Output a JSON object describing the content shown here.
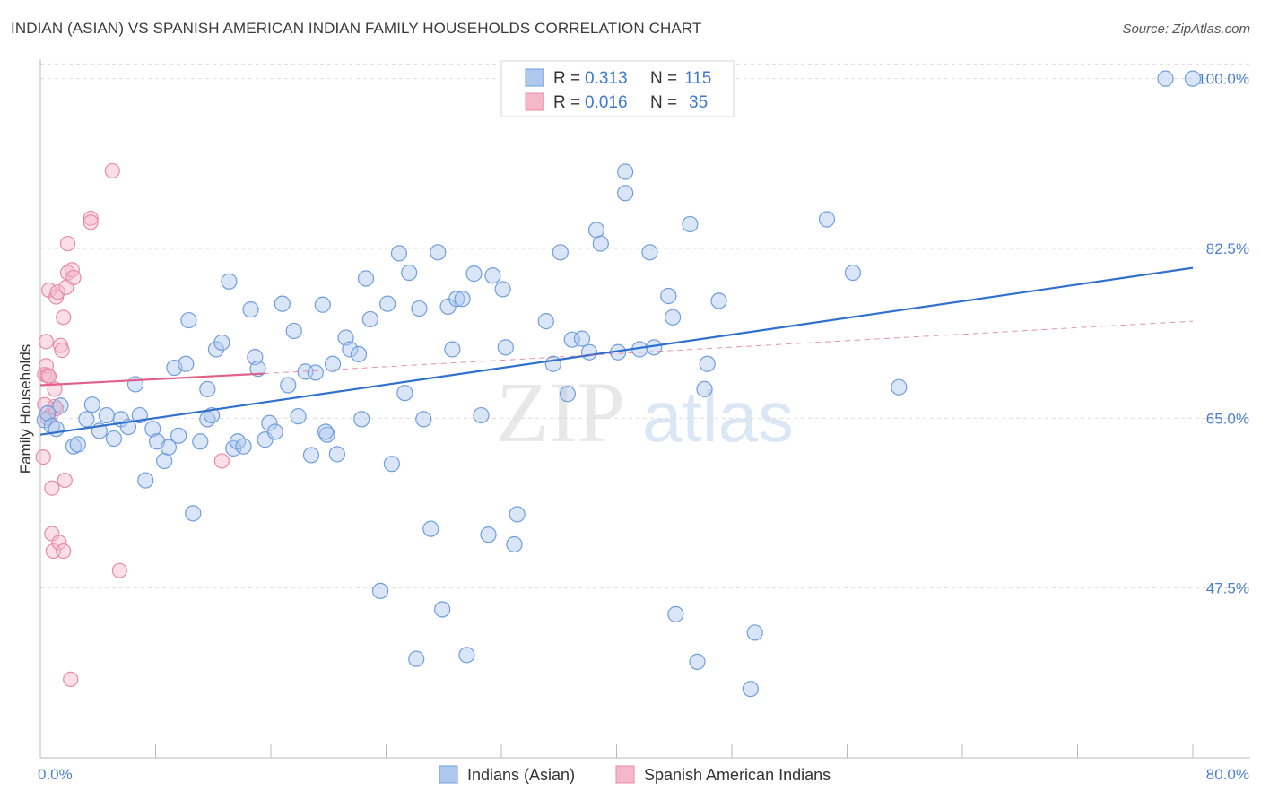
{
  "title": "INDIAN (ASIAN) VS SPANISH AMERICAN INDIAN FAMILY HOUSEHOLDS CORRELATION CHART",
  "source": "Source: ZipAtlas.com",
  "watermark": {
    "zip": "ZIP",
    "atlas": "atlas"
  },
  "colors": {
    "blue_fill": "#aec8ee",
    "blue_stroke": "#6f9ee0",
    "blue_line": "#2f6fce",
    "pink_fill": "#f5b8cb",
    "pink_stroke": "#e88aa8",
    "pink_line": "#e0608a",
    "grid": "#dddddd",
    "tick_text": "#4a7fd4"
  },
  "legend": {
    "r_label": "R =",
    "n_label": "N =",
    "series": [
      {
        "r": "0.313",
        "n": "115"
      },
      {
        "r": "0.016",
        "n": "35"
      }
    ]
  },
  "chart_data": {
    "type": "scatter",
    "title": "INDIAN (ASIAN) VS SPANISH AMERICAN INDIAN FAMILY HOUSEHOLDS CORRELATION CHART",
    "xlabel": "",
    "ylabel": "Family Households",
    "xlim": [
      0,
      80
    ],
    "ylim": [
      30,
      102
    ],
    "x_tick_labels": [
      "0.0%",
      "80.0%"
    ],
    "y_ticks": [
      47.5,
      65.0,
      82.5,
      100.0
    ],
    "y_tick_labels": [
      "47.5%",
      "65.0%",
      "82.5%",
      "100.0%"
    ],
    "grid": true,
    "series": [
      {
        "name": "Indians (Asian)",
        "r": 0.313,
        "n": 115,
        "trend": {
          "x0": 0,
          "y0": 63.3,
          "x1": 80,
          "y1": 80.5
        },
        "points": [
          [
            0.3,
            64.8
          ],
          [
            0.5,
            65.5
          ],
          [
            0.8,
            64.2
          ],
          [
            1.1,
            63.9
          ],
          [
            1.4,
            66.3
          ],
          [
            2.3,
            62.1
          ],
          [
            2.6,
            62.3
          ],
          [
            3.2,
            64.9
          ],
          [
            3.6,
            66.4
          ],
          [
            4.1,
            63.7
          ],
          [
            4.6,
            65.3
          ],
          [
            5.1,
            62.9
          ],
          [
            5.6,
            64.9
          ],
          [
            6.1,
            64.1
          ],
          [
            6.6,
            68.5
          ],
          [
            6.9,
            65.3
          ],
          [
            7.3,
            58.6
          ],
          [
            7.8,
            63.9
          ],
          [
            8.1,
            62.6
          ],
          [
            8.6,
            60.6
          ],
          [
            8.9,
            62.0
          ],
          [
            9.3,
            70.2
          ],
          [
            9.6,
            63.2
          ],
          [
            10.1,
            70.6
          ],
          [
            10.3,
            75.1
          ],
          [
            10.6,
            55.2
          ],
          [
            11.1,
            62.6
          ],
          [
            11.6,
            64.9
          ],
          [
            11.9,
            65.3
          ],
          [
            12.2,
            72.1
          ],
          [
            12.6,
            72.8
          ],
          [
            13.1,
            79.1
          ],
          [
            13.4,
            61.9
          ],
          [
            13.7,
            62.6
          ],
          [
            14.1,
            62.1
          ],
          [
            14.6,
            76.2
          ],
          [
            14.9,
            71.3
          ],
          [
            15.1,
            70.1
          ],
          [
            15.6,
            62.8
          ],
          [
            15.9,
            64.5
          ],
          [
            16.3,
            63.6
          ],
          [
            16.8,
            76.8
          ],
          [
            17.2,
            68.4
          ],
          [
            17.6,
            74.0
          ],
          [
            17.9,
            65.2
          ],
          [
            18.4,
            69.8
          ],
          [
            18.8,
            61.2
          ],
          [
            19.1,
            69.7
          ],
          [
            19.6,
            76.7
          ],
          [
            19.9,
            63.3
          ],
          [
            20.3,
            70.6
          ],
          [
            20.6,
            61.3
          ],
          [
            21.2,
            73.3
          ],
          [
            21.5,
            72.1
          ],
          [
            22.1,
            71.6
          ],
          [
            22.3,
            64.9
          ],
          [
            22.6,
            79.4
          ],
          [
            22.9,
            75.2
          ],
          [
            23.6,
            47.2
          ],
          [
            24.1,
            76.8
          ],
          [
            24.4,
            60.3
          ],
          [
            24.9,
            82.0
          ],
          [
            25.3,
            67.6
          ],
          [
            25.6,
            80.0
          ],
          [
            26.3,
            76.3
          ],
          [
            26.6,
            64.9
          ],
          [
            27.1,
            53.6
          ],
          [
            27.6,
            82.1
          ],
          [
            27.9,
            45.3
          ],
          [
            28.3,
            76.5
          ],
          [
            28.6,
            72.1
          ],
          [
            28.9,
            77.3
          ],
          [
            29.3,
            77.3
          ],
          [
            30.1,
            79.9
          ],
          [
            30.6,
            65.3
          ],
          [
            31.1,
            53.0
          ],
          [
            31.4,
            79.7
          ],
          [
            32.1,
            78.3
          ],
          [
            32.3,
            72.3
          ],
          [
            33.1,
            55.1
          ],
          [
            32.9,
            52.0
          ],
          [
            35.1,
            75.0
          ],
          [
            35.6,
            70.6
          ],
          [
            36.1,
            82.1
          ],
          [
            36.6,
            67.5
          ],
          [
            36.9,
            73.1
          ],
          [
            37.6,
            73.2
          ],
          [
            38.1,
            71.8
          ],
          [
            38.6,
            84.4
          ],
          [
            38.9,
            83.0
          ],
          [
            40.1,
            71.8
          ],
          [
            40.6,
            90.4
          ],
          [
            40.6,
            88.2
          ],
          [
            41.6,
            72.1
          ],
          [
            42.3,
            82.1
          ],
          [
            42.6,
            72.3
          ],
          [
            43.6,
            77.6
          ],
          [
            43.9,
            75.4
          ],
          [
            44.1,
            44.8
          ],
          [
            45.1,
            85.0
          ],
          [
            45.6,
            39.9
          ],
          [
            46.1,
            68.0
          ],
          [
            46.3,
            70.6
          ],
          [
            47.1,
            77.1
          ],
          [
            49.3,
            37.1
          ],
          [
            49.6,
            42.9
          ],
          [
            54.6,
            85.5
          ],
          [
            56.4,
            80.0
          ],
          [
            59.6,
            68.2
          ],
          [
            78.1,
            100.0
          ],
          [
            80.0,
            100.0
          ],
          [
            29.6,
            40.6
          ],
          [
            26.1,
            40.2
          ],
          [
            19.8,
            63.6
          ],
          [
            11.6,
            68.0
          ]
        ]
      },
      {
        "name": "Spanish American Indians",
        "r": 0.016,
        "n": 35,
        "trend": {
          "x0": 0,
          "y0": 68.4,
          "x1": 15.5,
          "y1": 69.6
        },
        "trend_dashed": {
          "x0": 15.5,
          "y0": 69.6,
          "x1": 80,
          "y1": 75.0
        },
        "points": [
          [
            0.2,
            61.0
          ],
          [
            0.3,
            66.4
          ],
          [
            0.3,
            69.5
          ],
          [
            0.4,
            72.9
          ],
          [
            0.4,
            70.4
          ],
          [
            0.5,
            69.4
          ],
          [
            0.6,
            78.2
          ],
          [
            0.7,
            65.3
          ],
          [
            0.8,
            57.8
          ],
          [
            0.8,
            53.1
          ],
          [
            0.9,
            51.3
          ],
          [
            1.0,
            68.0
          ],
          [
            1.1,
            66.0
          ],
          [
            1.1,
            77.5
          ],
          [
            1.2,
            78.0
          ],
          [
            1.3,
            52.2
          ],
          [
            1.4,
            72.5
          ],
          [
            1.5,
            72.0
          ],
          [
            1.6,
            75.4
          ],
          [
            1.6,
            51.3
          ],
          [
            1.7,
            58.6
          ],
          [
            1.8,
            78.5
          ],
          [
            1.9,
            83.0
          ],
          [
            1.9,
            80.0
          ],
          [
            2.2,
            80.3
          ],
          [
            2.3,
            79.5
          ],
          [
            3.5,
            85.6
          ],
          [
            3.5,
            85.2
          ],
          [
            5.0,
            90.5
          ],
          [
            5.5,
            49.3
          ],
          [
            12.6,
            60.6
          ],
          [
            2.1,
            38.1
          ],
          [
            0.5,
            65.0
          ],
          [
            1.0,
            66.2
          ],
          [
            0.6,
            69.3
          ]
        ]
      }
    ]
  },
  "axis": {
    "x_min_label": "0.0%",
    "x_max_label": "80.0%",
    "y_title": "Family Households"
  }
}
